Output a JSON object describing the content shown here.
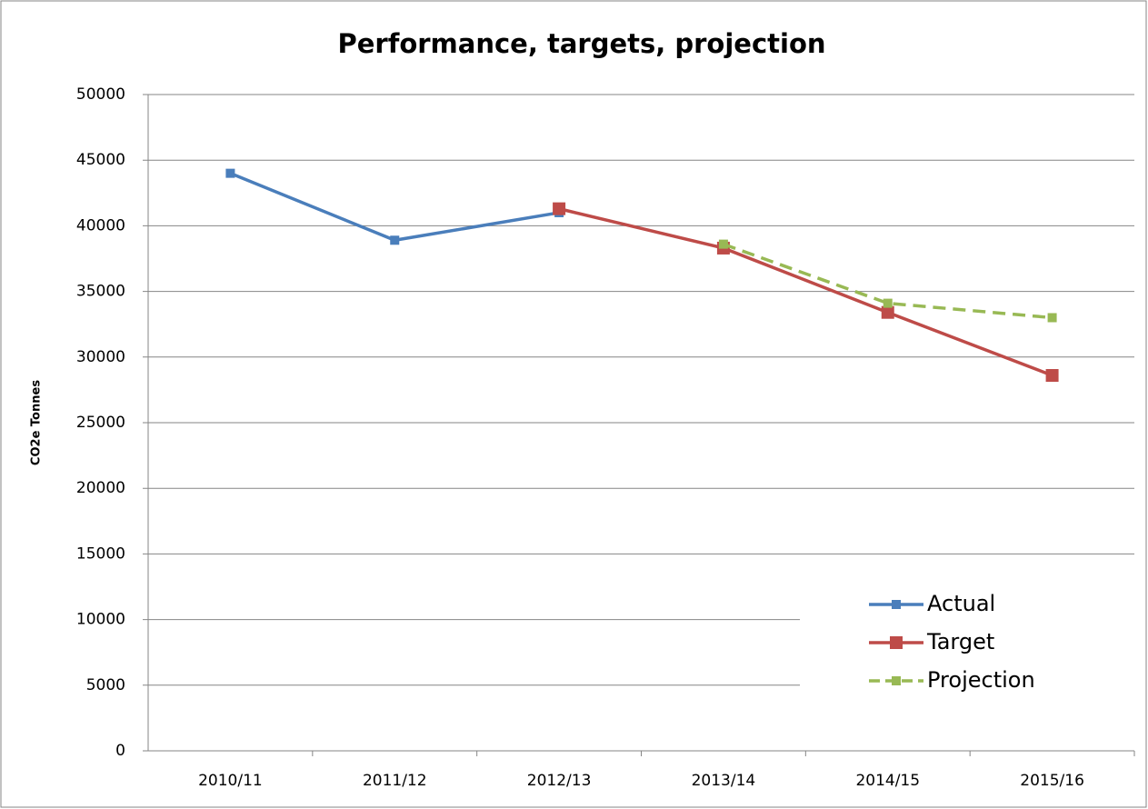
{
  "chart_data": {
    "type": "line",
    "title": "Performance, targets, projection",
    "y_label": "CO2e Tonnes",
    "categories": [
      "2010/11",
      "2011/12",
      "2012/13",
      "2013/14",
      "2014/15",
      "2015/16"
    ],
    "series": [
      {
        "name": "Actual",
        "color": "#4a7ebb",
        "style": "solid",
        "values": [
          44000,
          38900,
          41000,
          null,
          null,
          null
        ]
      },
      {
        "name": "Target",
        "color": "#be4b48",
        "style": "solid",
        "values": [
          null,
          null,
          41300,
          38300,
          33400,
          28600
        ]
      },
      {
        "name": "Projection",
        "color": "#98b954",
        "style": "dashed",
        "values": [
          null,
          null,
          null,
          38600,
          34100,
          33000
        ]
      }
    ],
    "ylim": [
      0,
      50000
    ],
    "yticks": [
      0,
      5000,
      10000,
      15000,
      20000,
      25000,
      30000,
      35000,
      40000,
      45000,
      50000
    ],
    "grid": true,
    "legend": "lower right"
  }
}
